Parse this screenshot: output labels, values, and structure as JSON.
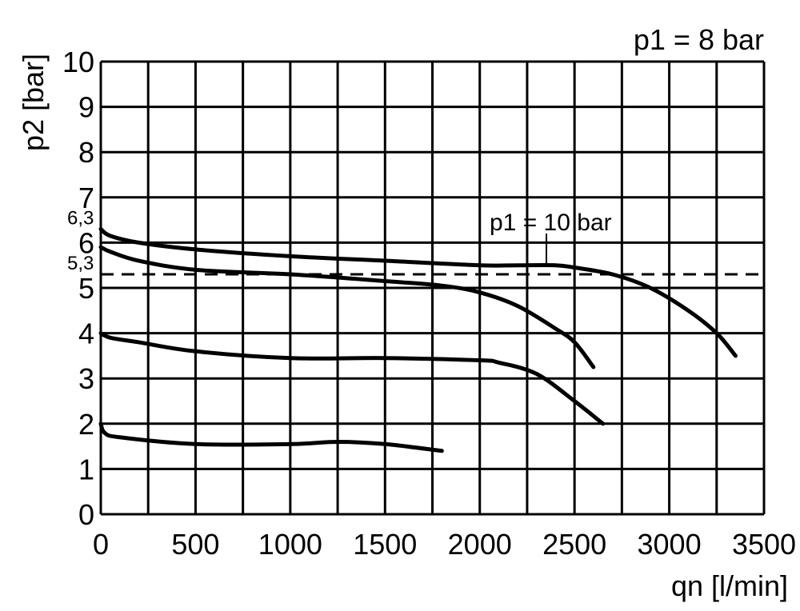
{
  "chart_data": {
    "type": "line",
    "title": "p1 = 8 bar",
    "xlabel": "qn [l/min]",
    "ylabel": "p2 [bar]",
    "xlim": [
      0,
      3500
    ],
    "ylim": [
      0,
      10
    ],
    "x_ticks": [
      "0",
      "500",
      "1000",
      "1500",
      "2000",
      "2500",
      "3000",
      "3500"
    ],
    "y_ticks": [
      "0",
      "1",
      "2",
      "3",
      "4",
      "5",
      "6",
      "7",
      "8",
      "9",
      "10"
    ],
    "grid": true,
    "reference_line": {
      "y": 5.3,
      "style": "dashed"
    },
    "value_labels": [
      {
        "text": "6,3",
        "y": 6.3
      },
      {
        "text": "5,3",
        "y": 5.3
      }
    ],
    "annotation": "p1 = 10 bar",
    "series": [
      {
        "x": [
          0,
          50,
          200,
          500,
          1000,
          1500,
          2000,
          2200,
          2400,
          2500,
          2700,
          2900,
          3100,
          3250,
          3350
        ],
        "y": [
          6.3,
          6.15,
          6.0,
          5.85,
          5.7,
          5.6,
          5.5,
          5.5,
          5.5,
          5.45,
          5.3,
          5.0,
          4.5,
          4.0,
          3.5
        ]
      },
      {
        "x": [
          0,
          50,
          200,
          500,
          1000,
          1500,
          1800,
          2000,
          2200,
          2400,
          2500,
          2600
        ],
        "y": [
          5.9,
          5.8,
          5.6,
          5.4,
          5.3,
          5.15,
          5.05,
          4.9,
          4.6,
          4.1,
          3.8,
          3.25
        ]
      },
      {
        "x": [
          0,
          50,
          200,
          500,
          1000,
          1500,
          2000,
          2100,
          2300,
          2500,
          2650
        ],
        "y": [
          4.0,
          3.9,
          3.8,
          3.6,
          3.45,
          3.45,
          3.4,
          3.35,
          3.1,
          2.5,
          2.0
        ]
      },
      {
        "x": [
          0,
          20,
          100,
          500,
          1000,
          1250,
          1500,
          1800
        ],
        "y": [
          2.0,
          1.8,
          1.7,
          1.55,
          1.55,
          1.6,
          1.55,
          1.4
        ]
      }
    ]
  }
}
